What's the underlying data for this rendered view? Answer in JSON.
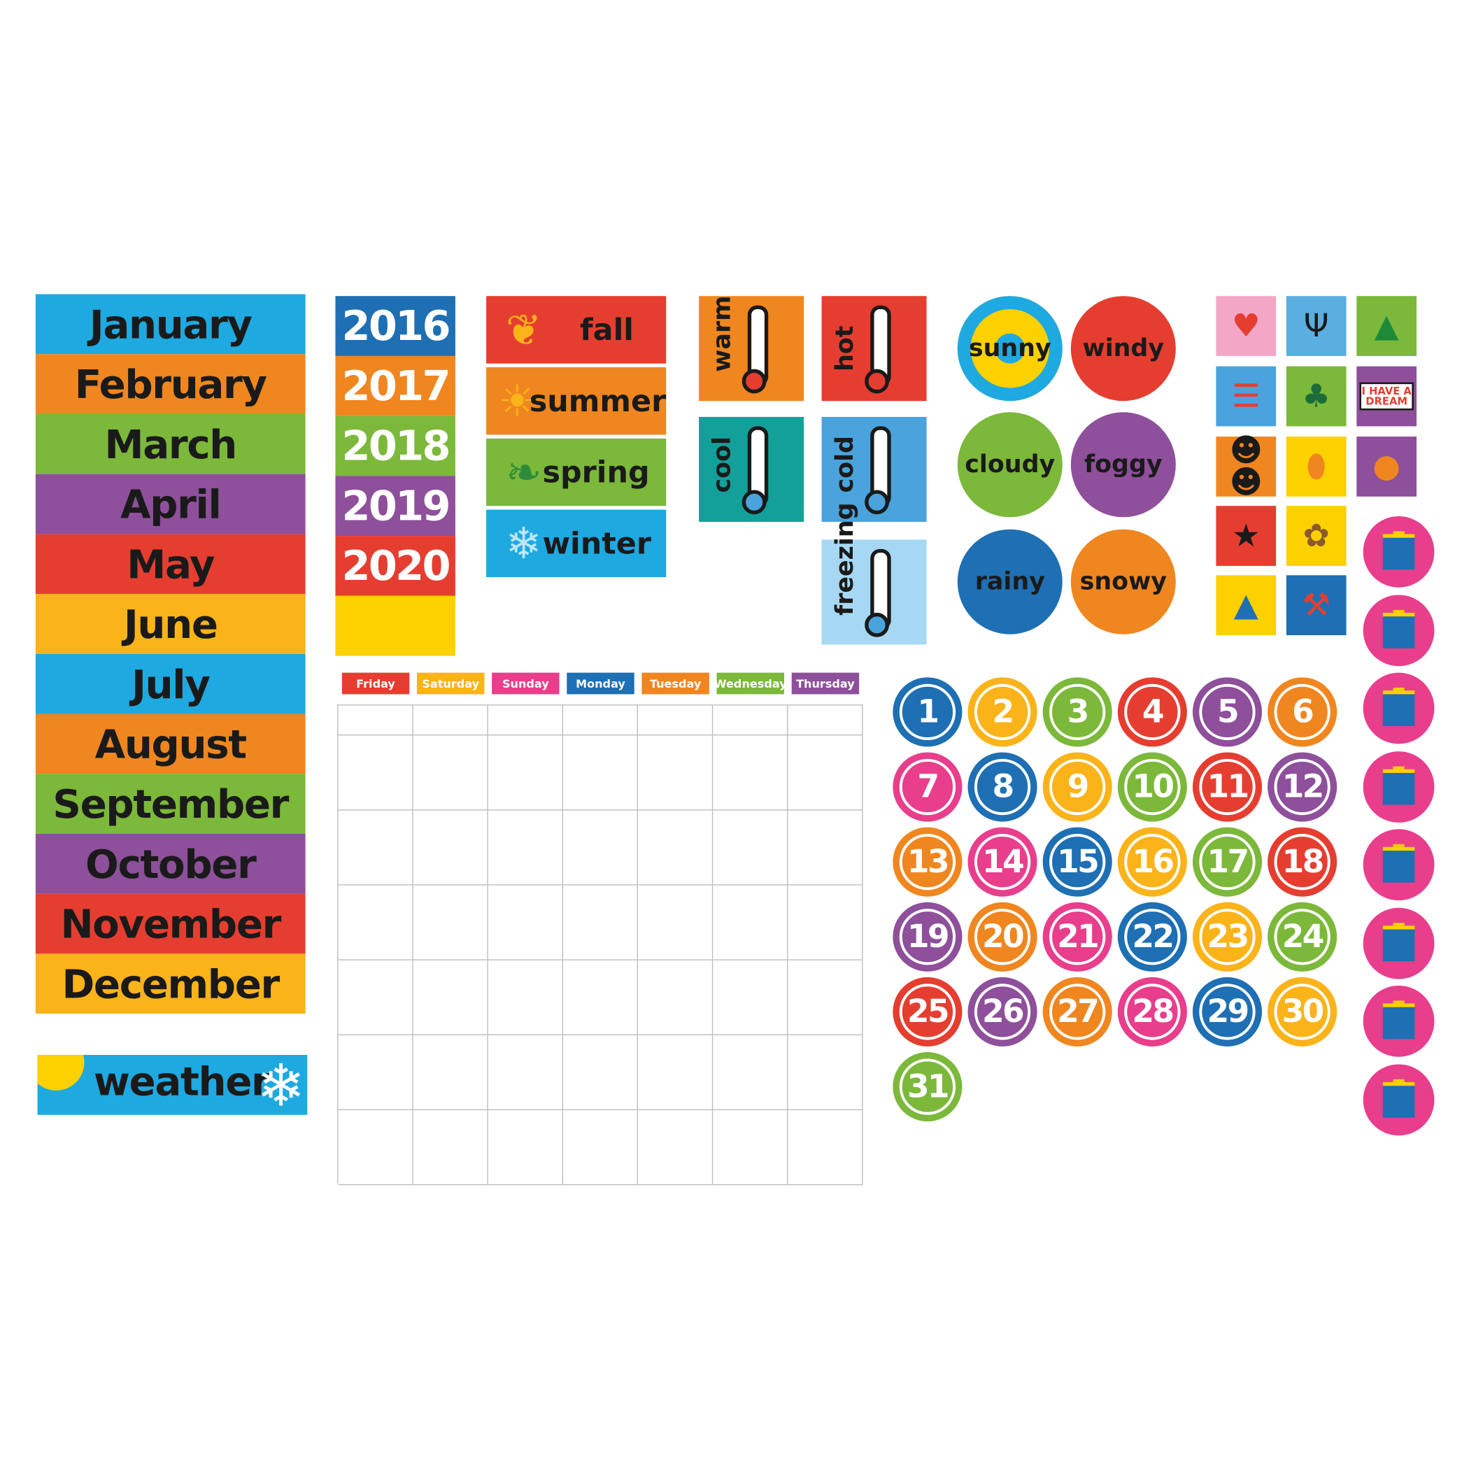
{
  "colors": {
    "blue": "#1fa9e1",
    "darkblue": "#1e6fb3",
    "orange": "#f0861f",
    "green": "#7cb83a",
    "purple": "#8e4f9b",
    "red": "#e53e30",
    "yellow": "#fbb31a",
    "pink": "#e83e8c",
    "teal": "#13a09a",
    "skyblue": "#4aa3dc",
    "iceblue": "#a6d8f4",
    "gold": "#fdd000"
  },
  "months": [
    {
      "label": "January",
      "color": "#1fa9e1"
    },
    {
      "label": "February",
      "color": "#f0861f"
    },
    {
      "label": "March",
      "color": "#7cb83a"
    },
    {
      "label": "April",
      "color": "#8e4f9b"
    },
    {
      "label": "May",
      "color": "#e53e30"
    },
    {
      "label": "June",
      "color": "#fbb31a"
    },
    {
      "label": "July",
      "color": "#1fa9e1"
    },
    {
      "label": "August",
      "color": "#f0861f"
    },
    {
      "label": "September",
      "color": "#7cb83a"
    },
    {
      "label": "October",
      "color": "#8e4f9b"
    },
    {
      "label": "November",
      "color": "#e53e30"
    },
    {
      "label": "December",
      "color": "#fbb31a"
    }
  ],
  "weather_header": {
    "label": "weather",
    "color": "#1fa9e1",
    "icons": [
      "sun-icon",
      "snowflake-icon"
    ]
  },
  "years": [
    {
      "label": "2016",
      "color": "#1e6fb3"
    },
    {
      "label": "2017",
      "color": "#f0861f"
    },
    {
      "label": "2018",
      "color": "#7cb83a"
    },
    {
      "label": "2019",
      "color": "#8e4f9b"
    },
    {
      "label": "2020",
      "color": "#e53e30"
    },
    {
      "label": "",
      "color": "#fdd000"
    }
  ],
  "seasons": [
    {
      "label": "fall",
      "color": "#e53e30",
      "icon": "maple-leaf-icon",
      "glyph": "❦"
    },
    {
      "label": "summer",
      "color": "#f0861f",
      "icon": "sun-icon",
      "glyph": "☀"
    },
    {
      "label": "spring",
      "color": "#7cb83a",
      "icon": "leaves-icon",
      "glyph": "❧"
    },
    {
      "label": "winter",
      "color": "#1fa9e1",
      "icon": "snowflake-icon",
      "glyph": "❄"
    }
  ],
  "temperatures": [
    {
      "label": "warm",
      "color": "#f0861f",
      "fill": "#e53e30"
    },
    {
      "label": "hot",
      "color": "#e53e30",
      "fill": "#e53e30"
    },
    {
      "label": "cool",
      "color": "#13a09a",
      "fill": "#4aa3dc"
    },
    {
      "label": "cold",
      "color": "#4aa3dc",
      "fill": "#4aa3dc"
    },
    {
      "label": "freezing",
      "color": "#a6d8f4",
      "fill": "#4aa3dc"
    }
  ],
  "weather": [
    {
      "label": "sunny",
      "color": "#1fa9e1"
    },
    {
      "label": "windy",
      "color": "#e53e30"
    },
    {
      "label": "cloudy",
      "color": "#7cb83a"
    },
    {
      "label": "foggy",
      "color": "#8e4f9b"
    },
    {
      "label": "rainy",
      "color": "#1e6fb3"
    },
    {
      "label": "snowy",
      "color": "#f0861f"
    }
  ],
  "holidays": [
    {
      "icon": "hearts-icon",
      "color": "#f4a6c6",
      "glyph": "♥",
      "fg": "#e53e30"
    },
    {
      "icon": "menorah-icon",
      "color": "#5aaee0",
      "glyph": "Ψ",
      "fg": "#1a1a1a"
    },
    {
      "icon": "christmas-tree-icon",
      "color": "#7cb83a",
      "glyph": "▲",
      "fg": "#1d8a3a"
    },
    {
      "icon": "american-flag-fireworks-icon",
      "color": "#4aa3dc",
      "glyph": "☰",
      "fg": "#e53e30"
    },
    {
      "icon": "four-leaf-clover-icon",
      "color": "#7cb83a",
      "glyph": "♣",
      "fg": "#1d6b3a"
    },
    {
      "icon": "speech-bubble-icon",
      "color": "#8e4f9b",
      "text": "I HAVE A DREAM",
      "fg": "#e53e30"
    },
    {
      "icon": "presidents-silhouette-icon",
      "color": "#f0861f",
      "glyph": "☻☻",
      "fg": "#1a1a1a"
    },
    {
      "icon": "easter-egg-icon",
      "color": "#fdd000",
      "glyph": "⬮",
      "fg": "#f0861f"
    },
    {
      "icon": "jack-o-lantern-icon",
      "color": "#8e4f9b",
      "glyph": "●",
      "fg": "#f0861f"
    },
    {
      "icon": "saluting-soldier-flag-icon",
      "color": "#e53e30",
      "glyph": "★",
      "fg": "#1a1a1a"
    },
    {
      "icon": "turkey-icon",
      "color": "#fdd000",
      "glyph": "✿",
      "fg": "#8b5a2b"
    },
    {
      "icon": "party-hat-icon",
      "color": "#fdd000",
      "glyph": "▲",
      "fg": "#1e6fb3"
    },
    {
      "icon": "hammer-icon",
      "color": "#1e6fb3",
      "glyph": "⚒",
      "fg": "#e53e30"
    }
  ],
  "birthday_count_icon": "birthday-cake-icon",
  "days": [
    {
      "label": "Friday",
      "color": "#e53e30"
    },
    {
      "label": "Saturday",
      "color": "#fbb31a"
    },
    {
      "label": "Sunday",
      "color": "#e83e8c"
    },
    {
      "label": "Monday",
      "color": "#1e6fb3"
    },
    {
      "label": "Tuesday",
      "color": "#f0861f"
    },
    {
      "label": "Wednesday",
      "color": "#7cb83a"
    },
    {
      "label": "Thursday",
      "color": "#8e4f9b"
    }
  ],
  "number_colors": [
    "#1e6fb3",
    "#fbb31a",
    "#7cb83a",
    "#e53e30",
    "#8e4f9b",
    "#f0861f",
    "#e83e8c"
  ],
  "numbers": [
    "1",
    "2",
    "3",
    "4",
    "5",
    "6",
    "7",
    "8",
    "9",
    "10",
    "11",
    "12",
    "13",
    "14",
    "15",
    "16",
    "17",
    "18",
    "19",
    "20",
    "21",
    "22",
    "23",
    "24",
    "25",
    "26",
    "27",
    "28",
    "29",
    "30",
    "31"
  ]
}
